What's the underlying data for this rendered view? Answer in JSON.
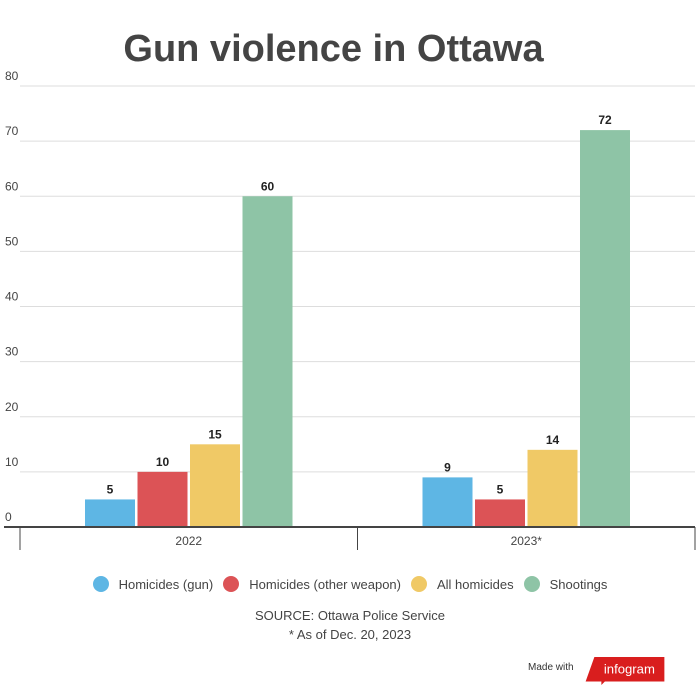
{
  "chart_data": {
    "type": "bar",
    "title": "Gun violence in Ottawa",
    "categories": [
      "2022",
      "2023*"
    ],
    "series": [
      {
        "name": "Homicides (gun)",
        "values": [
          5,
          9
        ],
        "color": "#5eb6e4"
      },
      {
        "name": "Homicides (other weapon)",
        "values": [
          10,
          5
        ],
        "color": "#dc5356"
      },
      {
        "name": "All homicides",
        "values": [
          15,
          14
        ],
        "color": "#f0c966"
      },
      {
        "name": "Shootings",
        "values": [
          60,
          72
        ],
        "color": "#8ec4a6"
      }
    ],
    "ylim": [
      0,
      80
    ],
    "yticks": [
      0,
      10,
      20,
      30,
      40,
      50,
      60,
      70,
      80
    ],
    "grid": true,
    "legend": "bottom"
  },
  "source": "SOURCE: Ottawa Police Service",
  "note": "* As of Dec. 20, 2023",
  "made_with": "Made with",
  "brand": "infogram"
}
